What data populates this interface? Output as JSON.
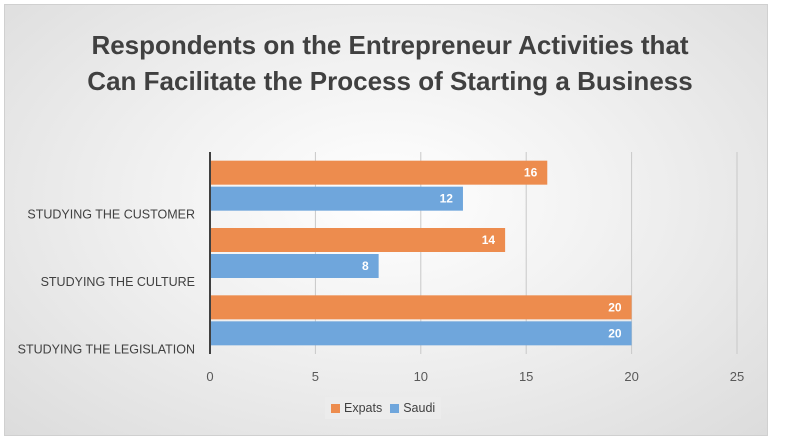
{
  "chart_data": {
    "type": "bar",
    "orientation": "horizontal",
    "title": "Respondents on the Entrepreneur Activities that Can Facilitate the Process of Starting a Business",
    "categories": [
      "STUDYING THE CUSTOMER",
      "STUDYING THE CULTURE",
      "STUDYING THE LEGISLATION"
    ],
    "series": [
      {
        "name": "Expats",
        "color": "#ed8c4e",
        "values": [
          16,
          14,
          20
        ]
      },
      {
        "name": "Saudi",
        "color": "#6fa6dc",
        "values": [
          12,
          8,
          20
        ]
      }
    ],
    "xlim": [
      0,
      25
    ],
    "xticks": [
      0,
      5,
      10,
      15,
      20,
      25
    ],
    "grid": true,
    "legend_position": "bottom"
  }
}
